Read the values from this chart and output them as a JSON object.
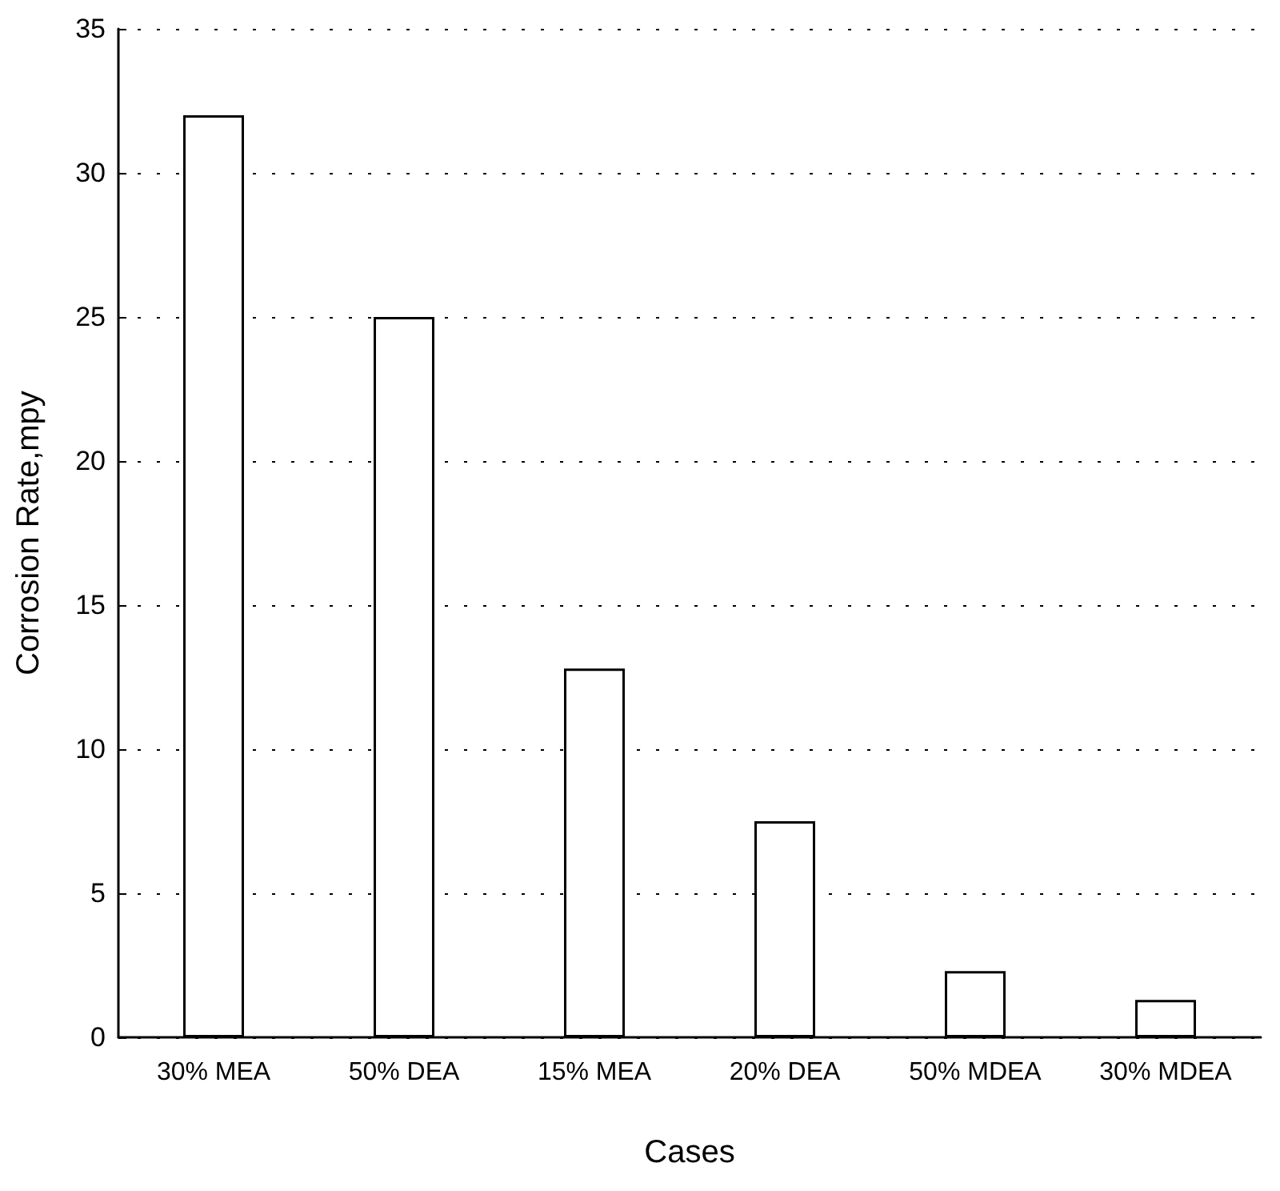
{
  "chart_data": {
    "type": "bar",
    "xlabel": "Cases",
    "ylabel": "Corrosion Rate,mpy",
    "categories": [
      "30% MEA",
      "50% DEA",
      "15% MEA",
      "20% DEA",
      "50% MDEA",
      "30% MDEA"
    ],
    "values": [
      32,
      25,
      12.8,
      7.5,
      2.3,
      1.3
    ],
    "color": "#ffffff",
    "ylim": [
      0,
      35
    ],
    "yticks": [
      0,
      5,
      10,
      15,
      20,
      25,
      30,
      35
    ],
    "grid": "y"
  }
}
